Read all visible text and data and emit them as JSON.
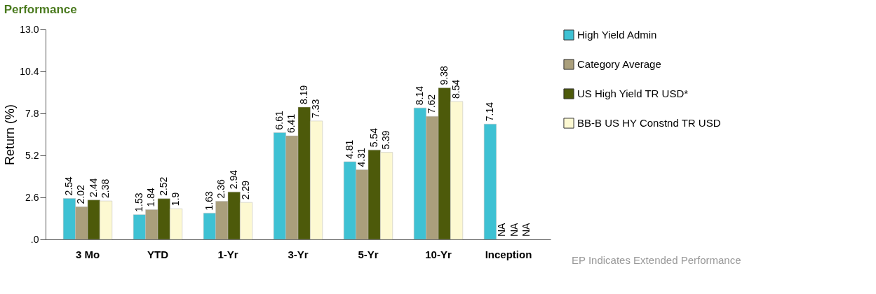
{
  "chart_data": {
    "type": "bar",
    "title": "Performance",
    "ylabel": "Return (%)",
    "categories": [
      "3 Mo",
      "YTD",
      "1-Yr",
      "3-Yr",
      "5-Yr",
      "10-Yr",
      "Inception"
    ],
    "series": [
      {
        "name": "High Yield Admin",
        "color": "#3ec1d3",
        "values": [
          2.54,
          1.53,
          1.63,
          6.61,
          4.81,
          8.14,
          7.14
        ],
        "value_labels": [
          "2.54",
          "1.53",
          "1.63",
          "6.61",
          "4.81",
          "8.14",
          "7.14"
        ]
      },
      {
        "name": "Category Average",
        "color": "#aa9f7c",
        "values": [
          2.02,
          1.84,
          2.36,
          6.41,
          4.31,
          7.62,
          null
        ],
        "value_labels": [
          "2.02",
          "1.84",
          "2.36",
          "6.41",
          "4.31",
          "7.62",
          "NA"
        ]
      },
      {
        "name": "US High Yield TR USD*",
        "color": "#4d5a0a",
        "values": [
          2.44,
          2.52,
          2.94,
          8.19,
          5.54,
          9.38,
          null
        ],
        "value_labels": [
          "2.44",
          "2.52",
          "2.94",
          "8.19",
          "5.54",
          "9.38",
          "NA"
        ]
      },
      {
        "name": "BB-B US HY Constnd TR USD",
        "color": "#fdf9d2",
        "values": [
          2.38,
          1.9,
          2.29,
          7.33,
          5.39,
          8.54,
          null
        ],
        "value_labels": [
          "2.38",
          "1.9",
          "2.29",
          "7.33",
          "5.39",
          "8.54",
          "NA"
        ]
      }
    ],
    "ylim": [
      0,
      13
    ],
    "yticks": [
      {
        "value": 0,
        "label": ".0"
      },
      2.6,
      5.2,
      7.8,
      10.4,
      {
        "value": 13,
        "label": "13.0"
      }
    ],
    "legend": "right",
    "grid": false,
    "annotations": [
      "EP Indicates Extended Performance"
    ]
  }
}
